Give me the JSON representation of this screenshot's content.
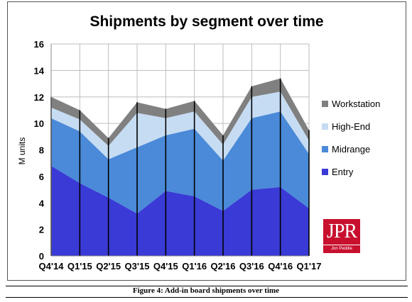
{
  "chart_data": {
    "type": "area",
    "stacked": true,
    "title": "Shipments by segment over time",
    "xlabel": "",
    "ylabel": "M units",
    "ylim": [
      0,
      16
    ],
    "yticks": [
      0,
      2,
      4,
      6,
      8,
      10,
      12,
      14,
      16
    ],
    "grid": true,
    "legend_position": "right",
    "categories": [
      "Q4'14",
      "Q1'15",
      "Q2'15",
      "Q3'15",
      "Q4'15",
      "Q1'16",
      "Q2'16",
      "Q3'16",
      "Q4'16",
      "Q1'17"
    ],
    "series": [
      {
        "name": "Entry",
        "color": "#3a3ad6",
        "values": [
          6.8,
          5.5,
          4.4,
          3.2,
          4.9,
          4.5,
          3.4,
          5.0,
          5.2,
          3.6
        ]
      },
      {
        "name": "Midrange",
        "color": "#4a8ad8",
        "values": [
          3.6,
          3.9,
          2.9,
          5.0,
          4.2,
          5.1,
          3.8,
          5.4,
          5.7,
          4.1
        ]
      },
      {
        "name": "High-End",
        "color": "#c6dcf3",
        "values": [
          0.8,
          0.9,
          1.0,
          2.6,
          1.3,
          1.3,
          1.2,
          1.6,
          1.5,
          1.0
        ]
      },
      {
        "name": "Workstation",
        "color": "#808080",
        "values": [
          0.8,
          0.7,
          0.6,
          0.8,
          0.7,
          0.8,
          0.7,
          0.8,
          1.0,
          0.8
        ]
      }
    ]
  },
  "caption": "Figure 4: Add-in board shipments over time",
  "logo": {
    "text": "JPR",
    "subtext": "Jon Peddie Research"
  }
}
